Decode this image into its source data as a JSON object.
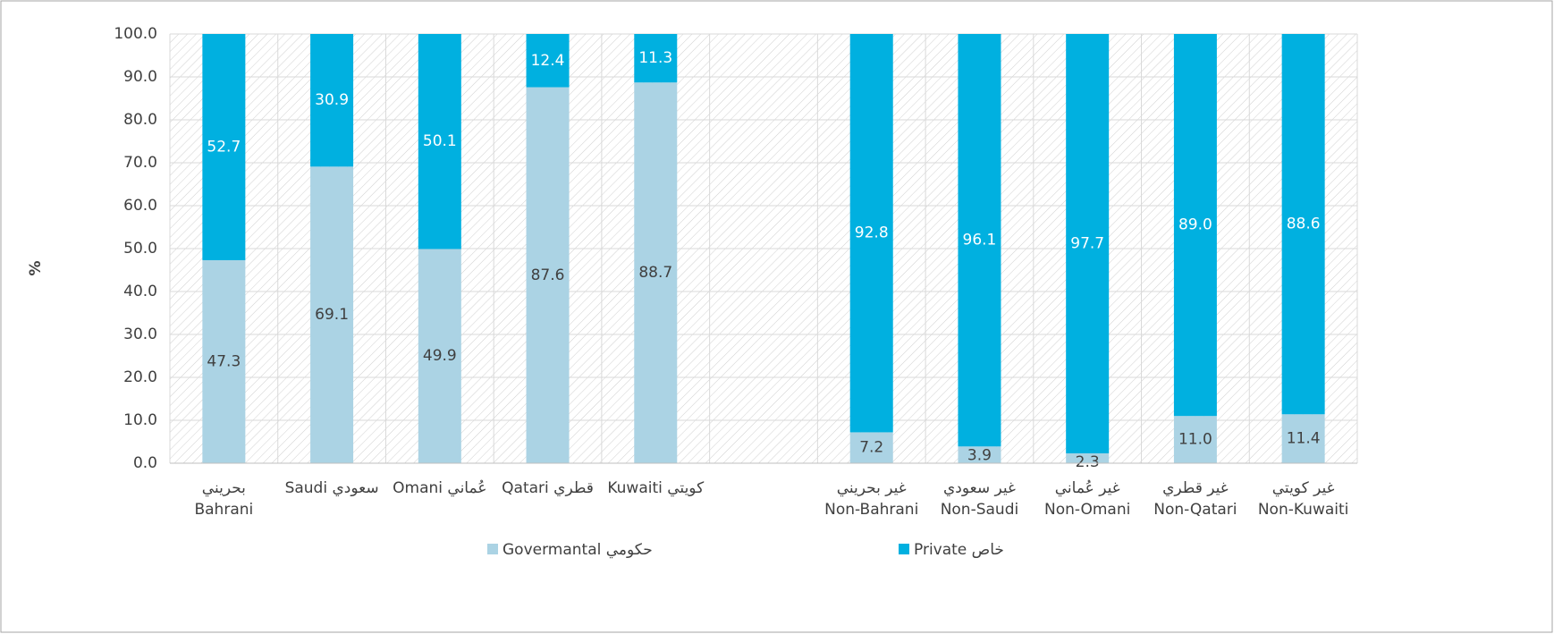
{
  "chart_data": {
    "type": "stacked_bar",
    "y_label": "%",
    "categories": [
      "بحريني\nBahrani",
      "Saudi  سعودي",
      "Omani  عُماني",
      "Qatari قطري",
      "Kuwaiti كويتي",
      null,
      "غير بحريني\nNon-Bahrani",
      "غير سعودي\nNon-Saudi",
      "غير عُماني\nNon-Omani",
      "غير قطري\nNon-Qatari",
      "غير كويتي\nNon-Kuwaiti"
    ],
    "series": [
      {
        "name": "Govermantal  حكومي",
        "color": "#abd3e4",
        "label_color": "#404040",
        "values": [
          47.3,
          69.1,
          49.9,
          87.6,
          88.7,
          null,
          7.2,
          3.9,
          2.3,
          11.0,
          11.4
        ],
        "value_labels": [
          "47.3",
          "69.1",
          "49.9",
          "87.6",
          "88.7",
          null,
          "7.2",
          "3.9",
          "2.3",
          "11.0",
          "11.4"
        ]
      },
      {
        "name": "Private خاص",
        "color": "#00b0e0",
        "label_color": "#ffffff",
        "values": [
          52.7,
          30.9,
          50.1,
          12.4,
          11.3,
          null,
          92.8,
          96.1,
          97.7,
          89.0,
          88.6
        ],
        "value_labels": [
          "52.7",
          "30.9",
          "50.1",
          "12.4",
          "11.3",
          null,
          "92.8",
          "96.1",
          "97.7",
          "89.0",
          "88.6"
        ]
      }
    ],
    "ylim": [
      0,
      100
    ],
    "yticks": [
      {
        "value": 0,
        "label": "0.0"
      },
      {
        "value": 10,
        "label": "10.0"
      },
      {
        "value": 20,
        "label": "20.0"
      },
      {
        "value": 30,
        "label": "30.0"
      },
      {
        "value": 40,
        "label": "40.0"
      },
      {
        "value": 50,
        "label": "50.0"
      },
      {
        "value": 60,
        "label": "60.0"
      },
      {
        "value": 70,
        "label": "70.0"
      },
      {
        "value": 80,
        "label": "80.0"
      },
      {
        "value": 90,
        "label": "90.0"
      },
      {
        "value": 100,
        "label": "100.0"
      }
    ],
    "grid": true,
    "legend": "bottom"
  }
}
